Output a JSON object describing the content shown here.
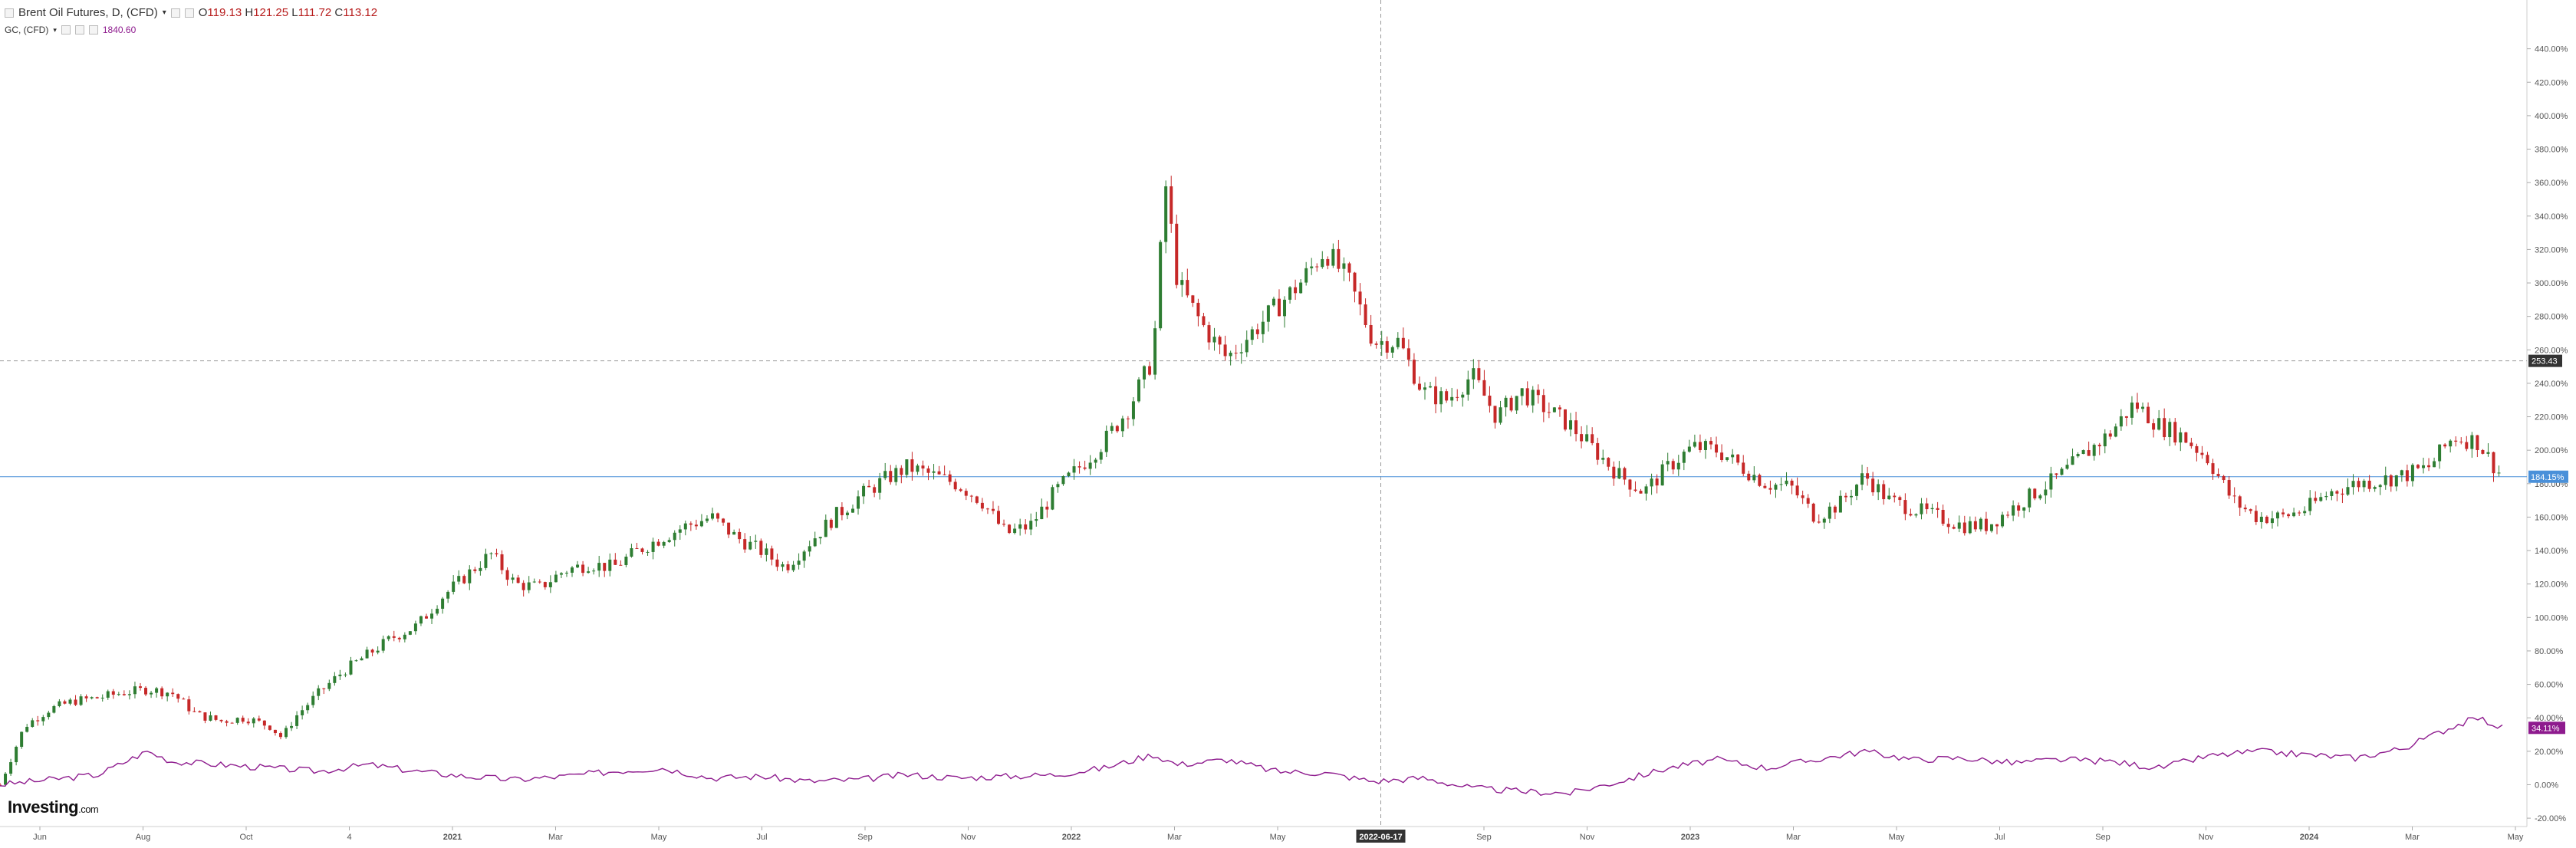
{
  "header": {
    "symbol": "Brent Oil Futures, D, (CFD)",
    "ohlc": {
      "o": "119.13",
      "h": "121.25",
      "l": "111.72",
      "c": "113.12"
    },
    "secondary_symbol": "GC, (CFD)",
    "secondary_value": "1840.60"
  },
  "branding": {
    "logo": "Investing",
    "logo_suffix": ".com"
  },
  "chart_data": {
    "type": "line",
    "y_unit": "%",
    "ylim": [
      -25,
      460
    ],
    "y_ticks": [
      "-20.00%",
      "0.00%",
      "20.00%",
      "40.00%",
      "60.00%",
      "80.00%",
      "100.00%",
      "120.00%",
      "140.00%",
      "160.00%",
      "180.00%",
      "200.00%",
      "220.00%",
      "240.00%",
      "260.00%",
      "280.00%",
      "300.00%",
      "320.00%",
      "340.00%",
      "360.00%",
      "380.00%",
      "400.00%",
      "420.00%",
      "440.00%"
    ],
    "x_ticks": [
      "Jun",
      "Aug",
      "Oct",
      "4",
      "2021",
      "Mar",
      "May",
      "Jul",
      "Sep",
      "Nov",
      "2022",
      "Mar",
      "May",
      "2022-06-17",
      "Sep",
      "Nov",
      "2023",
      "Mar",
      "May",
      "Jul",
      "Sep",
      "Nov",
      "2024",
      "Mar",
      "May"
    ],
    "crosshair": {
      "x_label": "2022-06-17",
      "y_label": "253.43",
      "y": 253.43
    },
    "price_line": {
      "label": "184.15%",
      "y": 184.15,
      "color": "#4a90d9"
    },
    "series": [
      {
        "name": "Brent Oil Futures, D, (CFD)",
        "kind": "candlestick",
        "up_color": "#2e7d32",
        "down_color": "#c62828",
        "points": [
          [
            0,
            0
          ],
          [
            10,
            35
          ],
          [
            20,
            45
          ],
          [
            30,
            50
          ],
          [
            40,
            52
          ],
          [
            50,
            55
          ],
          [
            60,
            57
          ],
          [
            70,
            55
          ],
          [
            80,
            42
          ],
          [
            90,
            38
          ],
          [
            100,
            40
          ],
          [
            110,
            35
          ],
          [
            115,
            28
          ],
          [
            120,
            40
          ],
          [
            130,
            55
          ],
          [
            140,
            68
          ],
          [
            150,
            78
          ],
          [
            160,
            88
          ],
          [
            170,
            95
          ],
          [
            180,
            112
          ],
          [
            190,
            125
          ],
          [
            200,
            138
          ],
          [
            210,
            120
          ],
          [
            220,
            118
          ],
          [
            230,
            128
          ],
          [
            240,
            132
          ],
          [
            250,
            130
          ],
          [
            260,
            140
          ],
          [
            270,
            148
          ],
          [
            280,
            155
          ],
          [
            290,
            160
          ],
          [
            300,
            148
          ],
          [
            310,
            140
          ],
          [
            320,
            130
          ],
          [
            330,
            145
          ],
          [
            340,
            160
          ],
          [
            350,
            172
          ],
          [
            360,
            182
          ],
          [
            370,
            190
          ],
          [
            380,
            185
          ],
          [
            390,
            180
          ],
          [
            400,
            170
          ],
          [
            410,
            150
          ],
          [
            420,
            155
          ],
          [
            430,
            175
          ],
          [
            440,
            190
          ],
          [
            450,
            205
          ],
          [
            460,
            225
          ],
          [
            470,
            255
          ],
          [
            475,
            360
          ],
          [
            480,
            300
          ],
          [
            490,
            275
          ],
          [
            500,
            255
          ],
          [
            510,
            270
          ],
          [
            520,
            285
          ],
          [
            530,
            300
          ],
          [
            540,
            320
          ],
          [
            550,
            300
          ],
          [
            560,
            265
          ],
          [
            570,
            265
          ],
          [
            580,
            235
          ],
          [
            590,
            230
          ],
          [
            600,
            245
          ],
          [
            610,
            220
          ],
          [
            620,
            235
          ],
          [
            630,
            225
          ],
          [
            640,
            215
          ],
          [
            650,
            200
          ],
          [
            660,
            185
          ],
          [
            670,
            175
          ],
          [
            680,
            190
          ],
          [
            690,
            202
          ],
          [
            700,
            200
          ],
          [
            710,
            190
          ],
          [
            720,
            180
          ],
          [
            730,
            178
          ],
          [
            740,
            160
          ],
          [
            750,
            168
          ],
          [
            760,
            185
          ],
          [
            770,
            170
          ],
          [
            780,
            165
          ],
          [
            790,
            160
          ],
          [
            800,
            155
          ],
          [
            810,
            155
          ],
          [
            820,
            165
          ],
          [
            830,
            175
          ],
          [
            840,
            185
          ],
          [
            850,
            198
          ],
          [
            860,
            210
          ],
          [
            870,
            228
          ],
          [
            880,
            215
          ],
          [
            890,
            208
          ],
          [
            900,
            195
          ],
          [
            910,
            170
          ],
          [
            920,
            160
          ],
          [
            930,
            160
          ],
          [
            940,
            165
          ],
          [
            950,
            175
          ],
          [
            960,
            180
          ],
          [
            970,
            182
          ],
          [
            980,
            185
          ],
          [
            990,
            190
          ],
          [
            1000,
            208
          ],
          [
            1010,
            205
          ],
          [
            1015,
            194
          ],
          [
            1020,
            184
          ]
        ]
      },
      {
        "name": "GC, (CFD)",
        "kind": "line",
        "color": "#8e1b8e",
        "last_label": "34.11%",
        "points": [
          [
            0,
            0
          ],
          [
            20,
            3
          ],
          [
            40,
            6
          ],
          [
            60,
            20
          ],
          [
            70,
            14
          ],
          [
            90,
            12
          ],
          [
            110,
            10
          ],
          [
            130,
            8
          ],
          [
            150,
            12
          ],
          [
            170,
            8
          ],
          [
            190,
            5
          ],
          [
            210,
            3
          ],
          [
            230,
            5
          ],
          [
            250,
            8
          ],
          [
            270,
            10
          ],
          [
            290,
            4
          ],
          [
            310,
            5
          ],
          [
            330,
            2
          ],
          [
            350,
            3
          ],
          [
            370,
            6
          ],
          [
            390,
            4
          ],
          [
            410,
            5
          ],
          [
            430,
            6
          ],
          [
            450,
            10
          ],
          [
            470,
            18
          ],
          [
            480,
            12
          ],
          [
            500,
            15
          ],
          [
            520,
            8
          ],
          [
            540,
            7
          ],
          [
            560,
            2
          ],
          [
            580,
            4
          ],
          [
            600,
            -2
          ],
          [
            620,
            -4
          ],
          [
            640,
            -5
          ],
          [
            660,
            2
          ],
          [
            680,
            10
          ],
          [
            700,
            15
          ],
          [
            720,
            10
          ],
          [
            740,
            15
          ],
          [
            760,
            20
          ],
          [
            780,
            15
          ],
          [
            800,
            16
          ],
          [
            820,
            13
          ],
          [
            840,
            15
          ],
          [
            860,
            14
          ],
          [
            880,
            10
          ],
          [
            900,
            17
          ],
          [
            920,
            20
          ],
          [
            940,
            18
          ],
          [
            960,
            16
          ],
          [
            980,
            22
          ],
          [
            1000,
            35
          ],
          [
            1010,
            40
          ],
          [
            1020,
            34
          ]
        ]
      }
    ],
    "legend": "top-left",
    "grid": false
  }
}
